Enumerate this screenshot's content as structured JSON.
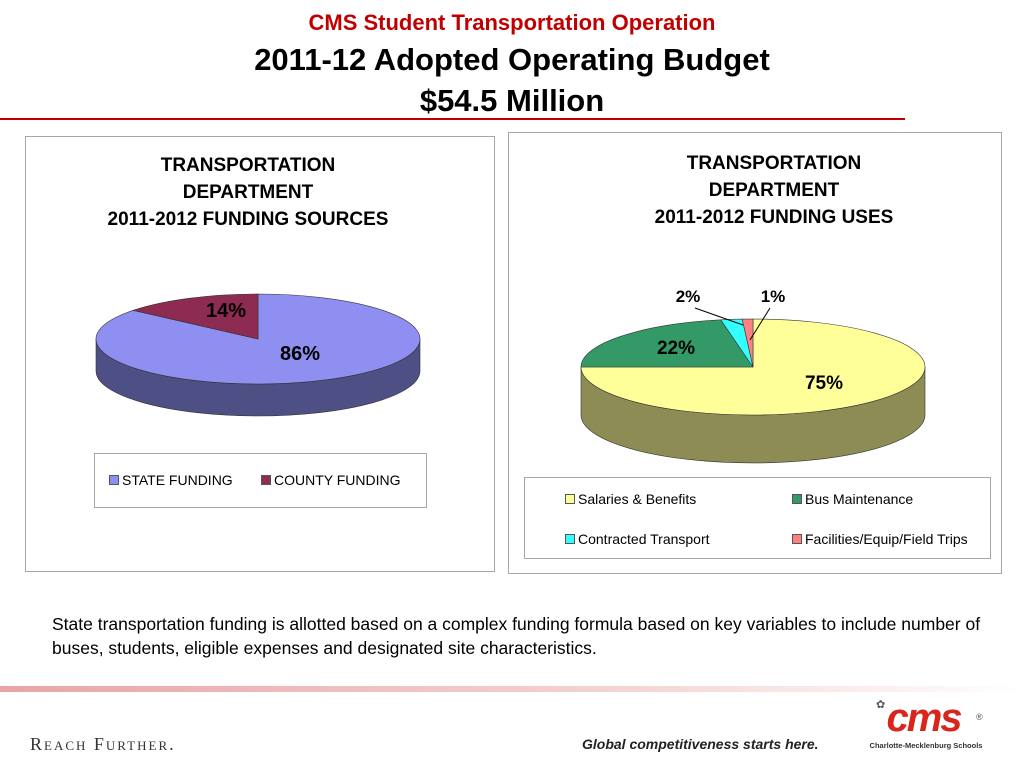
{
  "header": {
    "subtitle": "CMS Student Transportation Operation",
    "title": "2011-12 Adopted Operating Budget",
    "amount": "$54.5 Million"
  },
  "colors": {
    "accent_red": "#c00000",
    "state_funding": "#8e8ff0",
    "county_funding": "#8e2b52",
    "salaries": "#ffff99",
    "bus_maintenance": "#339966",
    "contracted_transport": "#33ffff",
    "facilities": "#ff8080"
  },
  "chart_data": [
    {
      "type": "pie",
      "title": "TRANSPORTATION\nDEPARTMENT\n2011-2012 FUNDING SOURCES",
      "legend_placement": "bottom",
      "three_d": true,
      "slices": [
        {
          "name": "STATE FUNDING",
          "value": 86,
          "label": "86%"
        },
        {
          "name": "COUNTY FUNDING",
          "value": 14,
          "label": "14%"
        }
      ]
    },
    {
      "type": "pie",
      "title": "TRANSPORTATION\nDEPARTMENT\n2011-2012 FUNDING USES",
      "legend_placement": "bottom",
      "three_d": true,
      "slices": [
        {
          "name": "Salaries & Benefits",
          "value": 75,
          "label": "75%"
        },
        {
          "name": "Bus Maintenance",
          "value": 22,
          "label": "22%"
        },
        {
          "name": "Contracted Transport",
          "value": 2,
          "label": "2%"
        },
        {
          "name": "Facilities/Equip/Field Trips",
          "value": 1,
          "label": "1%"
        }
      ]
    }
  ],
  "note": "State transportation funding is allotted based on a complex funding formula based on key variables to include number of buses, students, eligible expenses and designated site characteristics.",
  "footer": {
    "tagline": "Reach Further.",
    "slogan": "Global competitiveness starts here.",
    "logo_text": "cms",
    "logo_subtitle": "Charlotte-Mecklenburg Schools",
    "logo_mark": "®"
  }
}
